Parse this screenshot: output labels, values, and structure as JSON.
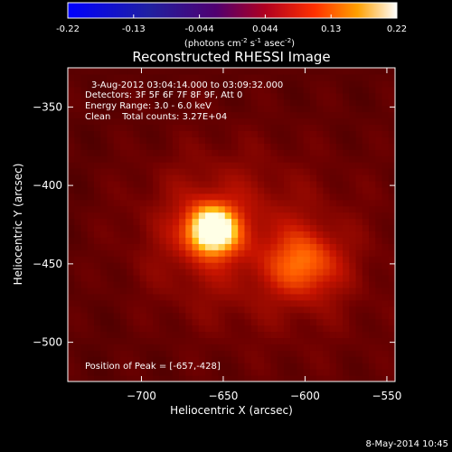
{
  "colorbar": {
    "ticks": [
      "-0.22",
      "-0.13",
      "-0.044",
      "0.044",
      "0.13",
      "0.22"
    ],
    "units_prefix": "(photons cm",
    "units_exp1": "-2",
    "units_mid1": " s",
    "units_exp2": "-1",
    "units_mid2": " asec",
    "units_exp3": "-2",
    "units_suffix": ")"
  },
  "chart_data": {
    "type": "heatmap",
    "title": "Reconstructed RHESSI Image",
    "xlabel": "Heliocentric X (arcsec)",
    "ylabel": "Heliocentric Y (arcsec)",
    "xlim": [
      -745,
      -545
    ],
    "ylim": [
      -525,
      -325
    ],
    "x_ticks": [
      -700,
      -650,
      -600,
      -550
    ],
    "y_ticks": [
      -350,
      -400,
      -450,
      -500
    ],
    "colorbar_range": [
      -0.22,
      0.22
    ],
    "annotations": [
      "3-Aug-2012 03:04:14.000 to 03:09:32.000",
      "Detectors: 3F 5F 6F 7F 8F 9F, Att 0",
      "Energy Range: 3.0 - 6.0 keV",
      "Clean    Total counts: 3.27E+04"
    ],
    "peak_label": "Position of Peak = [-657,-428]",
    "sources": [
      {
        "x": -657,
        "y": -428,
        "amplitude": 0.22
      },
      {
        "x": -600,
        "y": -450,
        "amplitude": 0.11
      }
    ]
  },
  "footer": {
    "date": "8-May-2014 10:45"
  }
}
